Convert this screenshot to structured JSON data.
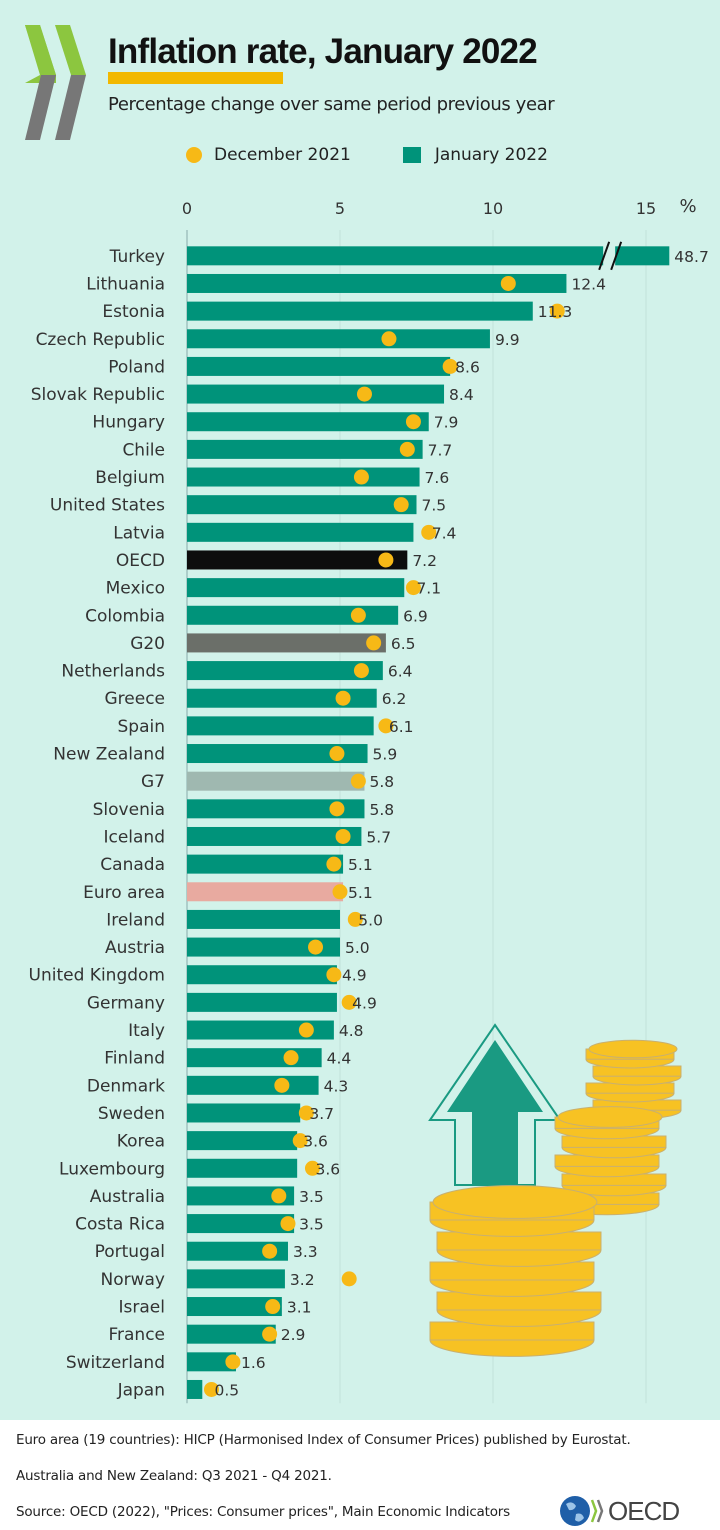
{
  "header": {
    "title": "Inflation rate, January 2022",
    "subtitle": "Percentage change over same period previous year"
  },
  "legend": {
    "dec_label": "December 2021",
    "jan_label": "January 2022"
  },
  "colors": {
    "background": "#d2f2ea",
    "bar": "#00937a",
    "oecd_bar": "#0d0d0d",
    "g20_bar": "#6b6f69",
    "g7_bar": "#9fb8b0",
    "euro_bar": "#e8aaa0",
    "dot": "#f7b916",
    "title_highlight": "#f2b800"
  },
  "chart_data": {
    "type": "bar",
    "orientation": "horizontal",
    "title": "Inflation rate, January 2022",
    "subtitle": "Percentage change over same period previous year",
    "xlabel": "%",
    "ylabel": "",
    "xlim": [
      0,
      15.5
    ],
    "xticks": [
      "0",
      "5",
      "10",
      "15"
    ],
    "unit_label": "%",
    "axis_break": {
      "category": "Turkey",
      "note": "bar truncated"
    },
    "grid": true,
    "legend_position": "top",
    "categories": [
      "Turkey",
      "Lithuania",
      "Estonia",
      "Czech Republic",
      "Poland",
      "Slovak Republic",
      "Hungary",
      "Chile",
      "Belgium",
      "United States",
      "Latvia",
      "OECD",
      "Mexico",
      "Colombia",
      "G20",
      "Netherlands",
      "Greece",
      "Spain",
      "New Zealand",
      "G7",
      "Slovenia",
      "Iceland",
      "Canada",
      "Euro area",
      "Ireland",
      "Austria",
      "United Kingdom",
      "Germany",
      "Italy",
      "Finland",
      "Denmark",
      "Sweden",
      "Korea",
      "Luxembourg",
      "Australia",
      "Costa Rica",
      "Portugal",
      "Norway",
      "Israel",
      "France",
      "Switzerland",
      "Japan"
    ],
    "highlight": {
      "OECD": "oecd_bar",
      "G20": "g20_bar",
      "G7": "g7_bar",
      "Euro area": "euro_bar"
    },
    "series": [
      {
        "name": "January 2022",
        "mark": "bar",
        "values": [
          48.7,
          12.4,
          11.3,
          9.9,
          8.6,
          8.4,
          7.9,
          7.7,
          7.6,
          7.5,
          7.4,
          7.2,
          7.1,
          6.9,
          6.5,
          6.4,
          6.2,
          6.1,
          5.9,
          5.8,
          5.8,
          5.7,
          5.1,
          5.1,
          5.0,
          5.0,
          4.9,
          4.9,
          4.8,
          4.4,
          4.3,
          3.7,
          3.6,
          3.6,
          3.5,
          3.5,
          3.3,
          3.2,
          3.1,
          2.9,
          1.6,
          0.5
        ],
        "labels": [
          "48.7",
          "12.4",
          "11.3",
          "9.9",
          "8.6",
          "8.4",
          "7.9",
          "7.7",
          "7.6",
          "7.5",
          "7.4",
          "7.2",
          "7.1",
          "6.9",
          "6.5",
          "6.4",
          "6.2",
          "6.1",
          "5.9",
          "5.8",
          "5.8",
          "5.7",
          "5.1",
          "5.1",
          "5.0",
          "5.0",
          "4.9",
          "4.9",
          "4.8",
          "4.4",
          "4.3",
          "3.7",
          "3.6",
          "3.6",
          "3.5",
          "3.5",
          "3.3",
          "3.2",
          "3.1",
          "2.9",
          "1.6",
          "0.5"
        ]
      },
      {
        "name": "December 2021",
        "mark": "dot",
        "values": [
          null,
          10.5,
          12.1,
          6.6,
          8.6,
          5.8,
          7.4,
          7.2,
          5.7,
          7.0,
          7.9,
          6.5,
          7.4,
          5.6,
          6.1,
          5.7,
          5.1,
          6.5,
          4.9,
          5.6,
          4.9,
          5.1,
          4.8,
          5.0,
          5.5,
          4.2,
          4.8,
          5.3,
          3.9,
          3.4,
          3.1,
          3.9,
          3.7,
          4.1,
          3.0,
          3.3,
          2.7,
          5.3,
          2.8,
          2.7,
          1.5,
          0.8
        ]
      }
    ]
  },
  "footer": {
    "notes": [
      "Euro area (19 countries): HICP (Harmonised Index of Consumer Prices) published by Eurostat.",
      "Australia and New Zealand: Q3 2021 - Q4 2021.",
      "Source: OECD (2022), \"Prices: Consumer prices\", Main Economic Indicators"
    ],
    "logo_text": "OECD"
  }
}
